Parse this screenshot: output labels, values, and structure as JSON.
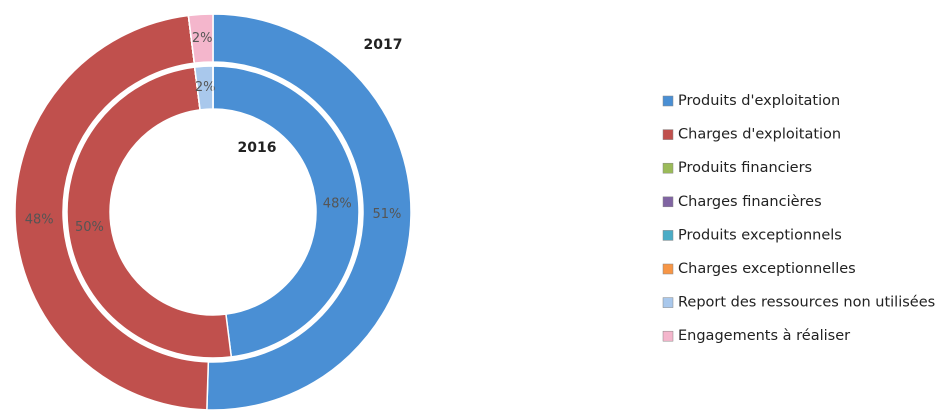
{
  "chart_data": {
    "type": "donut",
    "categories": [
      "Produits d'exploitation",
      "Charges d'exploitation",
      "Produits financiers",
      "Charges financières",
      "Produits exceptionnels",
      "Charges exceptionnelles",
      "Report des ressources non utilisées",
      "Engagements à réaliser"
    ],
    "colors": [
      "#4a8fd4",
      "#c0504d",
      "#9bbb59",
      "#8064a2",
      "#4bacc6",
      "#f79646",
      "#a9c8ec",
      "#f4b6cc"
    ],
    "series": [
      {
        "name": "2017",
        "values": [
          51,
          48,
          0,
          0,
          0,
          0,
          0,
          2
        ],
        "value_labels": [
          "51%",
          "48%",
          null,
          null,
          null,
          null,
          null,
          "2%"
        ]
      },
      {
        "name": "2016",
        "values": [
          48,
          50,
          0,
          0,
          0,
          0,
          2,
          0
        ],
        "value_labels": [
          "48%",
          "50%",
          null,
          null,
          null,
          null,
          "2%",
          null
        ]
      }
    ],
    "legend": "right"
  }
}
